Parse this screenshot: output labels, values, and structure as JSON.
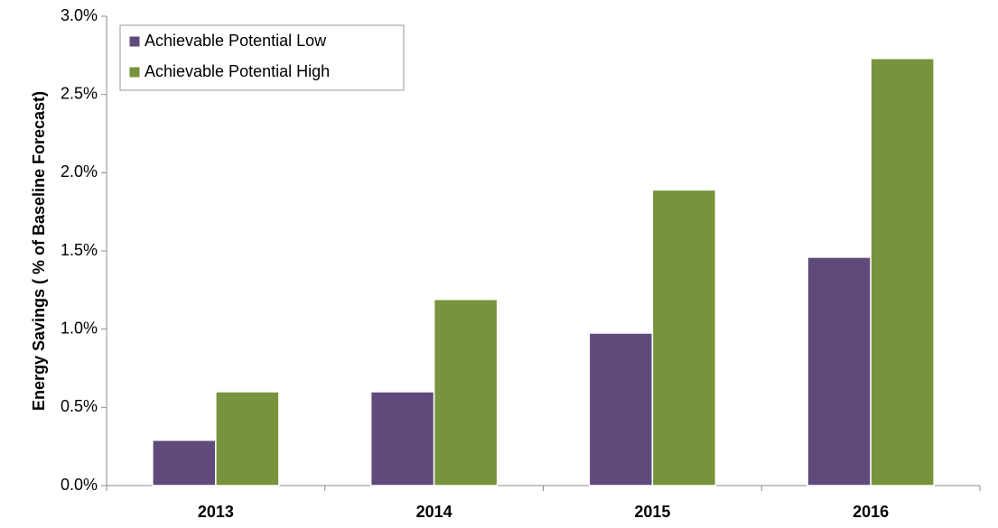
{
  "chart_data": {
    "type": "bar",
    "ylabel": "Energy Savings ( % of Baseline Forecast)",
    "categories": [
      "2013",
      "2014",
      "2015",
      "2016"
    ],
    "series": [
      {
        "name": "Achievable Potential Low",
        "color": "#604a7b",
        "values": [
          0.29,
          0.6,
          0.975,
          1.46
        ]
      },
      {
        "name": "Achievable Potential High",
        "color": "#77933c",
        "values": [
          0.6,
          1.19,
          1.89,
          2.73
        ]
      }
    ],
    "ylim": [
      0,
      3
    ],
    "yticks": [
      {
        "value": 0,
        "label": "0.0%"
      },
      {
        "value": 0.5,
        "label": "0.5%"
      },
      {
        "value": 1,
        "label": "1.0%"
      },
      {
        "value": 1.5,
        "label": "1.5%"
      },
      {
        "value": 2,
        "label": "2.0%"
      },
      {
        "value": 2.5,
        "label": "2.5%"
      },
      {
        "value": 3,
        "label": "3.0%"
      }
    ],
    "legend": "upper left",
    "grid": false
  }
}
